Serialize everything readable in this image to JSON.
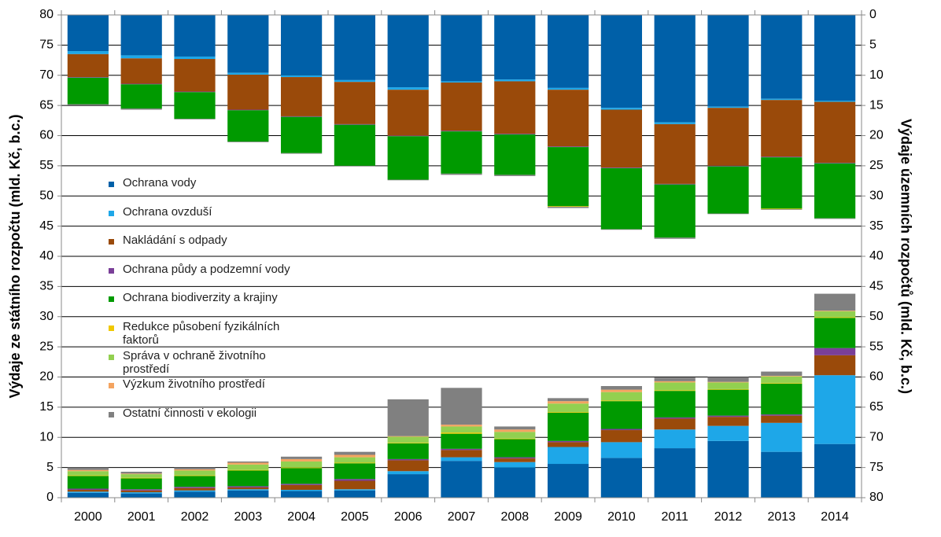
{
  "chart_data": {
    "type": "bar",
    "stacked": true,
    "grid": true,
    "y_label": "Výdaje ze státního rozpočtu (mld. Kč, b.c.)",
    "y2_label": "Výdaje územních rozpočtů (mld. Kč, b.c.)",
    "categories": [
      "2000",
      "2001",
      "2002",
      "2003",
      "2004",
      "2005",
      "2006",
      "2007",
      "2008",
      "2009",
      "2010",
      "2011",
      "2012",
      "2013",
      "2014"
    ],
    "ylim": [
      0,
      80
    ],
    "yticks": [
      0,
      5,
      10,
      15,
      20,
      25,
      30,
      35,
      40,
      45,
      50,
      55,
      60,
      65,
      70,
      75,
      80
    ],
    "y2lim": [
      0,
      80
    ],
    "y2_inverted": true,
    "y2ticks": [
      0,
      5,
      10,
      15,
      20,
      25,
      30,
      35,
      40,
      45,
      50,
      55,
      60,
      65,
      70,
      75,
      80
    ],
    "series": [
      {
        "name": "Ochrana vody",
        "color": "#0060a8",
        "values": [
          0.8,
          0.7,
          1.0,
          1.2,
          1.1,
          1.2,
          3.9,
          6.1,
          5.0,
          5.6,
          6.6,
          8.2,
          9.4,
          7.6,
          8.9
        ],
        "y2_values": [
          6.0,
          6.7,
          6.9,
          9.6,
          10.0,
          10.8,
          12.0,
          11.0,
          10.7,
          12.1,
          15.4,
          17.8,
          15.2,
          13.9,
          14.2
        ]
      },
      {
        "name": "Ochrana ovzduší",
        "color": "#1ea7e8",
        "values": [
          0.2,
          0.2,
          0.2,
          0.2,
          0.2,
          0.2,
          0.5,
          0.6,
          0.9,
          2.8,
          2.6,
          3.1,
          2.5,
          4.8,
          11.4
        ],
        "y2_values": [
          0.5,
          0.5,
          0.4,
          0.3,
          0.3,
          0.3,
          0.4,
          0.2,
          0.3,
          0.3,
          0.3,
          0.3,
          0.2,
          0.2,
          0.2
        ]
      },
      {
        "name": "Nakládání s odpady",
        "color": "#9a4a0a",
        "values": [
          0.3,
          0.3,
          0.4,
          0.3,
          0.8,
          1.4,
          1.8,
          1.2,
          0.6,
          0.8,
          2.0,
          1.8,
          1.5,
          1.2,
          3.3
        ],
        "y2_values": [
          3.8,
          4.2,
          5.4,
          5.8,
          6.5,
          7.0,
          7.6,
          8.0,
          8.7,
          9.4,
          9.6,
          9.9,
          9.6,
          9.4,
          10.1
        ]
      },
      {
        "name": "Ochrana půdy a podzemní vody",
        "color": "#7a3f98",
        "values": [
          0.2,
          0.2,
          0.2,
          0.2,
          0.2,
          0.3,
          0.2,
          0.2,
          0.2,
          0.2,
          0.2,
          0.2,
          0.2,
          0.2,
          1.2
        ],
        "y2_values": [
          0.1,
          0.1,
          0.1,
          0.1,
          0.1,
          0.1,
          0.1,
          0.1,
          0.1,
          0.1,
          0.1,
          0.1,
          0.1,
          0.1,
          0.1
        ]
      },
      {
        "name": "Ochrana biodiverzity a krajiny",
        "color": "#009a00",
        "values": [
          2.1,
          1.8,
          1.8,
          2.6,
          2.6,
          2.6,
          2.6,
          2.5,
          3.0,
          4.7,
          4.6,
          4.4,
          4.3,
          5.1,
          5.0
        ],
        "y2_values": [
          4.4,
          4.0,
          4.4,
          5.2,
          6.0,
          6.8,
          7.2,
          7.0,
          6.7,
          9.8,
          10.1,
          8.8,
          7.8,
          8.5,
          9.1
        ]
      },
      {
        "name": "Redukce působení fyzikálních faktorů",
        "color": "#f0c800",
        "values": [
          0.1,
          0.1,
          0.1,
          0.1,
          0.1,
          0.1,
          0.1,
          0.2,
          0.1,
          0.1,
          0.1,
          0.1,
          0.1,
          0.1,
          0.1
        ],
        "y2_values": [
          0,
          0,
          0,
          0,
          0,
          0,
          0,
          0,
          0,
          0.1,
          0,
          0,
          0,
          0.1,
          0
        ]
      },
      {
        "name": "Správa v ochraně životního prostředí",
        "color": "#92d050",
        "values": [
          0.7,
          0.6,
          0.8,
          0.9,
          1.0,
          0.9,
          1.0,
          1.0,
          1.1,
          1.4,
          1.4,
          1.3,
          1.1,
          1.1,
          1.0
        ],
        "y2_values": [
          0,
          0,
          0,
          0,
          0,
          0,
          0,
          0,
          0,
          0,
          0,
          0,
          0,
          0,
          0
        ]
      },
      {
        "name": "Výzkum životního prostředí",
        "color": "#f4a460",
        "values": [
          0.2,
          0.1,
          0.2,
          0.3,
          0.4,
          0.4,
          0.1,
          0.3,
          0.4,
          0.4,
          0.4,
          0.2,
          0.1,
          0.1,
          0.1
        ],
        "y2_values": [
          0,
          0,
          0,
          0,
          0,
          0,
          0,
          0,
          0,
          0,
          0,
          0,
          0,
          0,
          0
        ]
      },
      {
        "name": "Ostatní činnosti v ekologii",
        "color": "#808080",
        "values": [
          0.4,
          0.3,
          0.3,
          0.2,
          0.4,
          0.5,
          6.1,
          6.1,
          0.5,
          0.5,
          0.6,
          0.6,
          0.8,
          0.7,
          2.8
        ],
        "y2_values": [
          0.1,
          0.2,
          0.1,
          0.1,
          0.1,
          0.1,
          0.1,
          0.2,
          0.2,
          0.2,
          0.1,
          0.2,
          0.1,
          0.1,
          0.1
        ]
      }
    ]
  }
}
